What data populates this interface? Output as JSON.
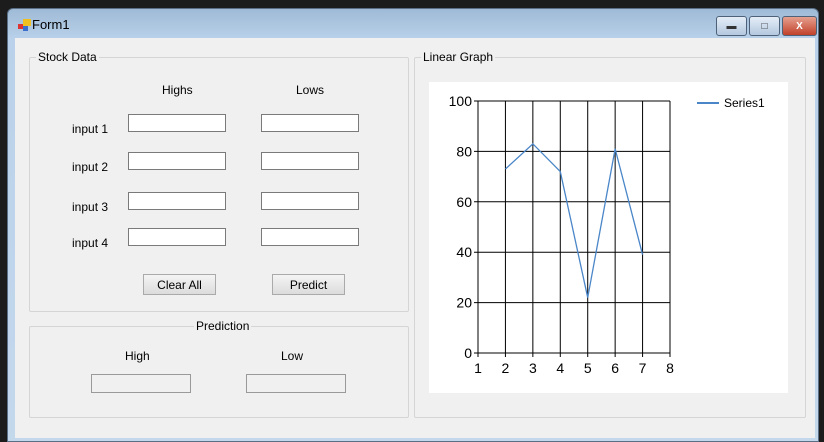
{
  "window": {
    "title": "Form1",
    "minimize": "—",
    "maximize": "□",
    "close": "X"
  },
  "stock": {
    "legend": "Stock Data",
    "col_highs": "Highs",
    "col_lows": "Lows",
    "rows": [
      {
        "label": "input 1",
        "high": "",
        "low": ""
      },
      {
        "label": "input 2",
        "high": "",
        "low": ""
      },
      {
        "label": "input 3",
        "high": "",
        "low": ""
      },
      {
        "label": "input 4",
        "high": "",
        "low": ""
      }
    ],
    "clear_label": "Clear All",
    "predict_label": "Predict"
  },
  "prediction": {
    "legend": "Prediction",
    "high_label": "High",
    "low_label": "Low",
    "high_value": "",
    "low_value": ""
  },
  "graph": {
    "legend": "Linear Graph"
  },
  "chart_data": {
    "type": "line",
    "title": "",
    "xlabel": "",
    "ylabel": "",
    "xlim": [
      1,
      8
    ],
    "ylim": [
      0,
      100
    ],
    "xticks": [
      1,
      2,
      3,
      4,
      5,
      6,
      7,
      8
    ],
    "yticks": [
      0,
      20,
      40,
      60,
      80,
      100
    ],
    "grid": true,
    "legend_position": "top-right",
    "series": [
      {
        "name": "Series1",
        "color": "#4a86c8",
        "x": [
          2,
          3,
          4,
          5,
          6,
          7
        ],
        "y": [
          73,
          83,
          72,
          22,
          81,
          39
        ]
      }
    ]
  }
}
